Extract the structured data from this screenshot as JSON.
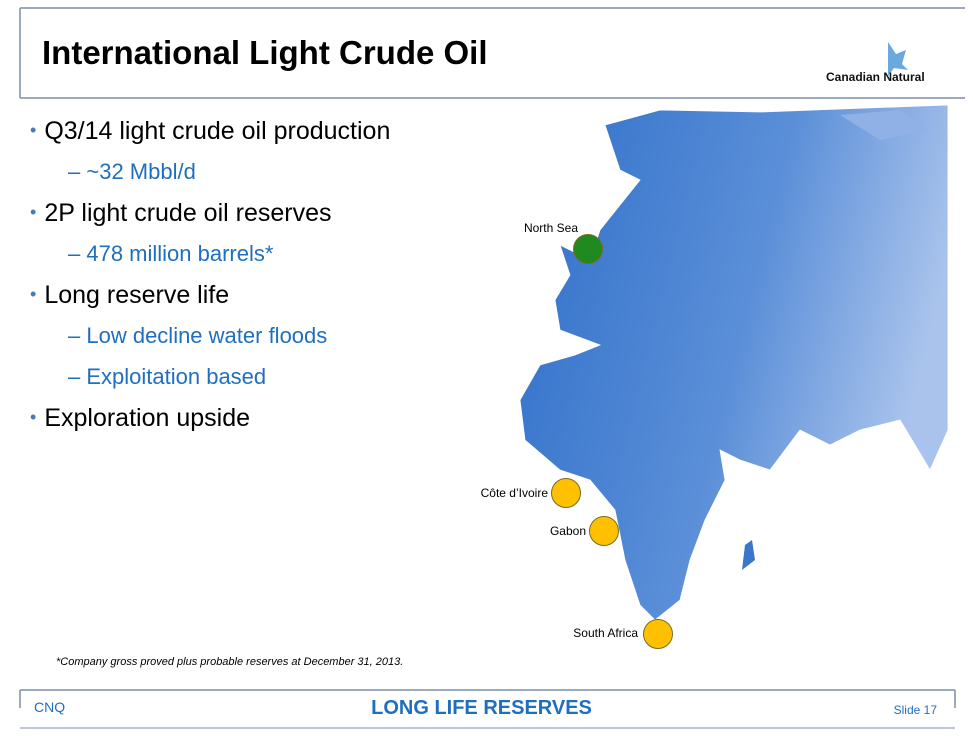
{
  "header": {
    "title": "International Light Crude Oil",
    "logo_text": "Canadian Natural"
  },
  "bullets": [
    {
      "text": "Q3/14 light crude oil production",
      "sub": [
        "~32 Mbbl/d"
      ]
    },
    {
      "text": "2P light crude oil reserves",
      "sub": [
        "478 million barrels*"
      ]
    },
    {
      "text": "Long reserve life",
      "sub": [
        "Low decline water floods",
        "Exploitation based"
      ]
    },
    {
      "text": "Exploration upside",
      "sub": []
    }
  ],
  "map": {
    "markers": [
      {
        "label": "North Sea",
        "color": "#1f8a1f"
      },
      {
        "label": "Côte d’Ivoire",
        "color": "#ffc000"
      },
      {
        "label": "Gabon",
        "color": "#ffc000"
      },
      {
        "label": "South Africa",
        "color": "#ffc000"
      }
    ]
  },
  "footnote": "*Company gross proved plus probable reserves at December 31, 2013.",
  "footer": {
    "left": "CNQ",
    "center": "LONG LIFE RESERVES",
    "right": "Slide 17"
  }
}
